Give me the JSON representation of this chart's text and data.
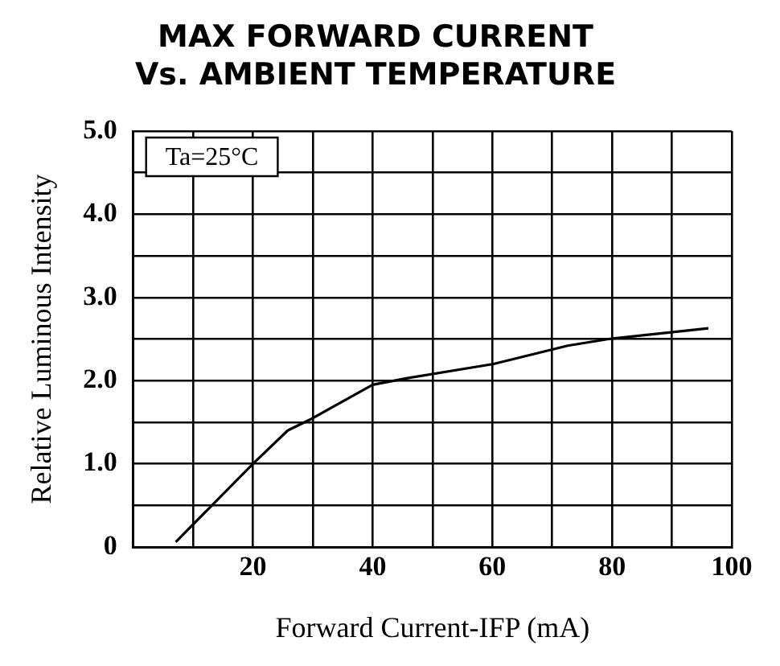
{
  "chart_data": {
    "type": "line",
    "title": "MAX FORWARD CURRENT\nVs. AMBIENT TEMPERATURE",
    "xlabel": "Forward Current-IFP (mA)",
    "ylabel": "Relative Luminous Intensity",
    "annotations": [
      "Ta=25°C"
    ],
    "series": [
      {
        "color": "#000000",
        "x": [
          7.1,
          20,
          25.8,
          29.5,
          40,
          45.8,
          60.2,
          72.6,
          79.4,
          96.1
        ],
        "values": [
          0.06,
          1.0,
          1.4,
          1.53,
          1.95,
          2.03,
          2.2,
          2.42,
          2.5,
          2.63
        ]
      }
    ],
    "xlim": [
      0,
      100
    ],
    "ylim": [
      0,
      5
    ],
    "xticks": [
      {
        "value": 0,
        "label": null
      },
      {
        "value": 10,
        "label": null
      },
      20,
      {
        "value": 30,
        "label": null
      },
      40,
      {
        "value": 50,
        "label": null
      },
      60,
      {
        "value": 70,
        "label": null
      },
      80,
      {
        "value": 90,
        "label": null
      },
      100
    ],
    "yticks": [
      0,
      {
        "value": 0.5,
        "label": null
      },
      {
        "value": 1,
        "label": "1.0"
      },
      {
        "value": 1.5,
        "label": null
      },
      {
        "value": 2,
        "label": "2.0"
      },
      {
        "value": 2.5,
        "label": null
      },
      {
        "value": 3,
        "label": "3.0"
      },
      {
        "value": 3.5,
        "label": null
      },
      {
        "value": 4,
        "label": "4.0"
      },
      {
        "value": 4.5,
        "label": null
      },
      {
        "value": 5,
        "label": "5.0"
      }
    ],
    "grid": true,
    "legend": false
  }
}
